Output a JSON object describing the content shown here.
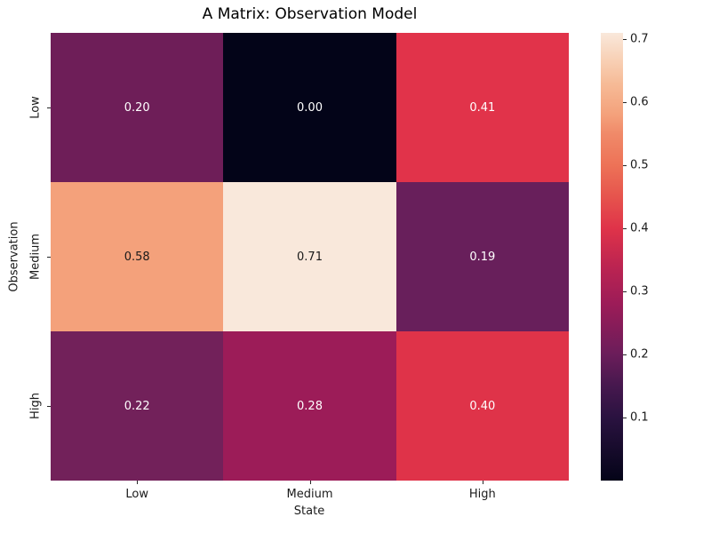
{
  "title": "A Matrix: Observation Model",
  "chart_data": {
    "type": "heatmap",
    "title": "A Matrix: Observation Model",
    "xlabel": "State",
    "ylabel": "Observation",
    "x_categories": [
      "Low",
      "Medium",
      "High"
    ],
    "y_categories": [
      "Low",
      "Medium",
      "High"
    ],
    "values": [
      [
        0.2,
        0.0,
        0.41
      ],
      [
        0.58,
        0.71,
        0.19
      ],
      [
        0.22,
        0.28,
        0.4
      ]
    ],
    "cell_labels": [
      [
        "0.20",
        "0.00",
        "0.41"
      ],
      [
        "0.58",
        "0.71",
        "0.19"
      ],
      [
        "0.22",
        "0.28",
        "0.40"
      ]
    ],
    "cell_colors": [
      [
        "#6E1E58",
        "#030418",
        "#E1334A"
      ],
      [
        "#F4A17B",
        "#F9E8DB",
        "#681F5B"
      ],
      [
        "#72215A",
        "#9C1C58",
        "#DF3349"
      ]
    ],
    "cell_text_colors": [
      [
        "#FFFFFF",
        "#FFFFFF",
        "#FFFFFF"
      ],
      [
        "#1A1A1A",
        "#1A1A1A",
        "#FFFFFF"
      ],
      [
        "#FFFFFF",
        "#FFFFFF",
        "#FFFFFF"
      ]
    ],
    "colormap": "rocket",
    "vmin": 0.0,
    "vmax": 0.71,
    "grid": false,
    "legend_position": "right-colorbar",
    "colorbar": {
      "tick_values": [
        0.1,
        0.2,
        0.3,
        0.4,
        0.5,
        0.6,
        0.7
      ],
      "tick_labels": [
        "0.1",
        "0.2",
        "0.3",
        "0.4",
        "0.5",
        "0.6",
        "0.7"
      ],
      "gradient_stops": [
        {
          "pos": 0.0,
          "color": "#040418"
        },
        {
          "pos": 0.141,
          "color": "#2A1240"
        },
        {
          "pos": 0.211,
          "color": "#46184E"
        },
        {
          "pos": 0.282,
          "color": "#6B1D5A"
        },
        {
          "pos": 0.394,
          "color": "#9C1C58"
        },
        {
          "pos": 0.479,
          "color": "#BC2451"
        },
        {
          "pos": 0.563,
          "color": "#DF3349"
        },
        {
          "pos": 0.634,
          "color": "#E6544D"
        },
        {
          "pos": 0.704,
          "color": "#ED7257"
        },
        {
          "pos": 0.775,
          "color": "#F08A69"
        },
        {
          "pos": 0.817,
          "color": "#F4A17B"
        },
        {
          "pos": 0.887,
          "color": "#F6BB97"
        },
        {
          "pos": 0.944,
          "color": "#F8D2B8"
        },
        {
          "pos": 1.0,
          "color": "#F9E8DB"
        }
      ]
    }
  }
}
